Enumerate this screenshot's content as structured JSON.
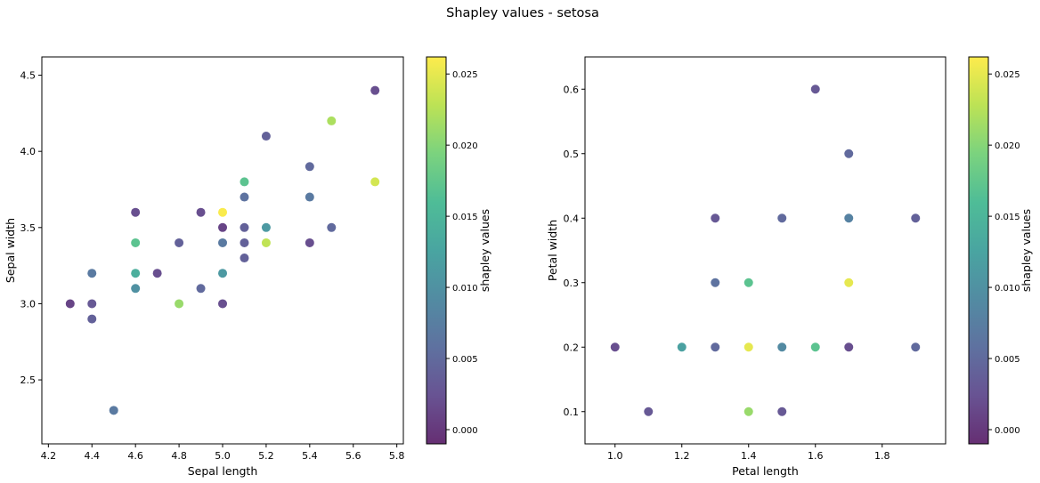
{
  "figure": {
    "title": "Shapley values - setosa"
  },
  "chart_data": [
    {
      "type": "scatter",
      "title": "",
      "xlabel": "Sepal length",
      "ylabel": "Sepal width",
      "xlim": [
        4.17,
        5.83
      ],
      "ylim": [
        2.08,
        4.62
      ],
      "xticks": [
        "4.2",
        "4.4",
        "4.6",
        "4.8",
        "5.0",
        "5.2",
        "5.4",
        "5.6",
        "5.8"
      ],
      "yticks": [
        "2.5",
        "3.0",
        "3.5",
        "4.0",
        "4.5"
      ],
      "colorbar_label": "shapley values",
      "colorbar_range": [
        -0.001,
        0.0262
      ],
      "colorbar_ticks": [
        "0.000",
        "0.005",
        "0.010",
        "0.015",
        "0.020",
        "0.025"
      ],
      "colormap": "viridis",
      "grid": false,
      "points": [
        {
          "x": 4.3,
          "y": 3.0,
          "c": 0.001
        },
        {
          "x": 4.4,
          "y": 3.2,
          "c": 0.007
        },
        {
          "x": 4.4,
          "y": 3.0,
          "c": 0.003
        },
        {
          "x": 4.4,
          "y": 2.9,
          "c": 0.004
        },
        {
          "x": 4.5,
          "y": 2.3,
          "c": 0.007
        },
        {
          "x": 4.6,
          "y": 3.6,
          "c": 0.002
        },
        {
          "x": 4.6,
          "y": 3.4,
          "c": 0.017
        },
        {
          "x": 4.6,
          "y": 3.2,
          "c": 0.014
        },
        {
          "x": 4.6,
          "y": 3.1,
          "c": 0.01
        },
        {
          "x": 4.7,
          "y": 3.2,
          "c": 0.002
        },
        {
          "x": 4.8,
          "y": 3.4,
          "c": 0.004
        },
        {
          "x": 4.8,
          "y": 3.0,
          "c": 0.021
        },
        {
          "x": 4.9,
          "y": 3.6,
          "c": 0.002
        },
        {
          "x": 4.9,
          "y": 3.1,
          "c": 0.005
        },
        {
          "x": 5.0,
          "y": 3.6,
          "c": 0.026
        },
        {
          "x": 5.0,
          "y": 3.5,
          "c": 0.001
        },
        {
          "x": 5.0,
          "y": 3.4,
          "c": 0.007
        },
        {
          "x": 5.0,
          "y": 3.2,
          "c": 0.011
        },
        {
          "x": 5.0,
          "y": 3.0,
          "c": 0.002
        },
        {
          "x": 5.1,
          "y": 3.8,
          "c": 0.017
        },
        {
          "x": 5.1,
          "y": 3.7,
          "c": 0.006
        },
        {
          "x": 5.1,
          "y": 3.5,
          "c": 0.004
        },
        {
          "x": 5.1,
          "y": 3.4,
          "c": 0.004
        },
        {
          "x": 5.1,
          "y": 3.3,
          "c": 0.004
        },
        {
          "x": 5.2,
          "y": 4.1,
          "c": 0.004
        },
        {
          "x": 5.2,
          "y": 3.5,
          "c": 0.011
        },
        {
          "x": 5.2,
          "y": 3.4,
          "c": 0.023
        },
        {
          "x": 5.4,
          "y": 3.9,
          "c": 0.005
        },
        {
          "x": 5.4,
          "y": 3.7,
          "c": 0.007
        },
        {
          "x": 5.4,
          "y": 3.4,
          "c": 0.002
        },
        {
          "x": 5.5,
          "y": 4.2,
          "c": 0.022
        },
        {
          "x": 5.5,
          "y": 3.5,
          "c": 0.005
        },
        {
          "x": 5.7,
          "y": 4.4,
          "c": 0.002
        },
        {
          "x": 5.7,
          "y": 3.8,
          "c": 0.024
        }
      ]
    },
    {
      "type": "scatter",
      "title": "",
      "xlabel": "Petal length",
      "ylabel": "Petal width",
      "xlim": [
        0.91,
        1.99
      ],
      "ylim": [
        0.05,
        0.65
      ],
      "xticks": [
        "1.0",
        "1.2",
        "1.4",
        "1.6",
        "1.8"
      ],
      "yticks": [
        "0.1",
        "0.2",
        "0.3",
        "0.4",
        "0.5",
        "0.6"
      ],
      "colorbar_label": "shapley values",
      "colorbar_range": [
        -0.001,
        0.0262
      ],
      "colorbar_ticks": [
        "0.000",
        "0.005",
        "0.010",
        "0.015",
        "0.020",
        "0.025"
      ],
      "colormap": "viridis",
      "grid": false,
      "points": [
        {
          "x": 1.0,
          "y": 0.2,
          "c": 0.002
        },
        {
          "x": 1.1,
          "y": 0.1,
          "c": 0.003
        },
        {
          "x": 1.2,
          "y": 0.2,
          "c": 0.012
        },
        {
          "x": 1.3,
          "y": 0.4,
          "c": 0.003
        },
        {
          "x": 1.3,
          "y": 0.3,
          "c": 0.006
        },
        {
          "x": 1.3,
          "y": 0.2,
          "c": 0.005
        },
        {
          "x": 1.4,
          "y": 0.3,
          "c": 0.017
        },
        {
          "x": 1.4,
          "y": 0.2,
          "c": 0.025
        },
        {
          "x": 1.4,
          "y": 0.1,
          "c": 0.021
        },
        {
          "x": 1.5,
          "y": 0.4,
          "c": 0.005
        },
        {
          "x": 1.5,
          "y": 0.2,
          "c": 0.009
        },
        {
          "x": 1.5,
          "y": 0.1,
          "c": 0.003
        },
        {
          "x": 1.6,
          "y": 0.6,
          "c": 0.003
        },
        {
          "x": 1.6,
          "y": 0.2,
          "c": 0.017
        },
        {
          "x": 1.7,
          "y": 0.5,
          "c": 0.005
        },
        {
          "x": 1.7,
          "y": 0.4,
          "c": 0.008
        },
        {
          "x": 1.7,
          "y": 0.3,
          "c": 0.025
        },
        {
          "x": 1.7,
          "y": 0.2,
          "c": 0.002
        },
        {
          "x": 1.9,
          "y": 0.4,
          "c": 0.004
        },
        {
          "x": 1.9,
          "y": 0.2,
          "c": 0.005
        }
      ]
    }
  ]
}
